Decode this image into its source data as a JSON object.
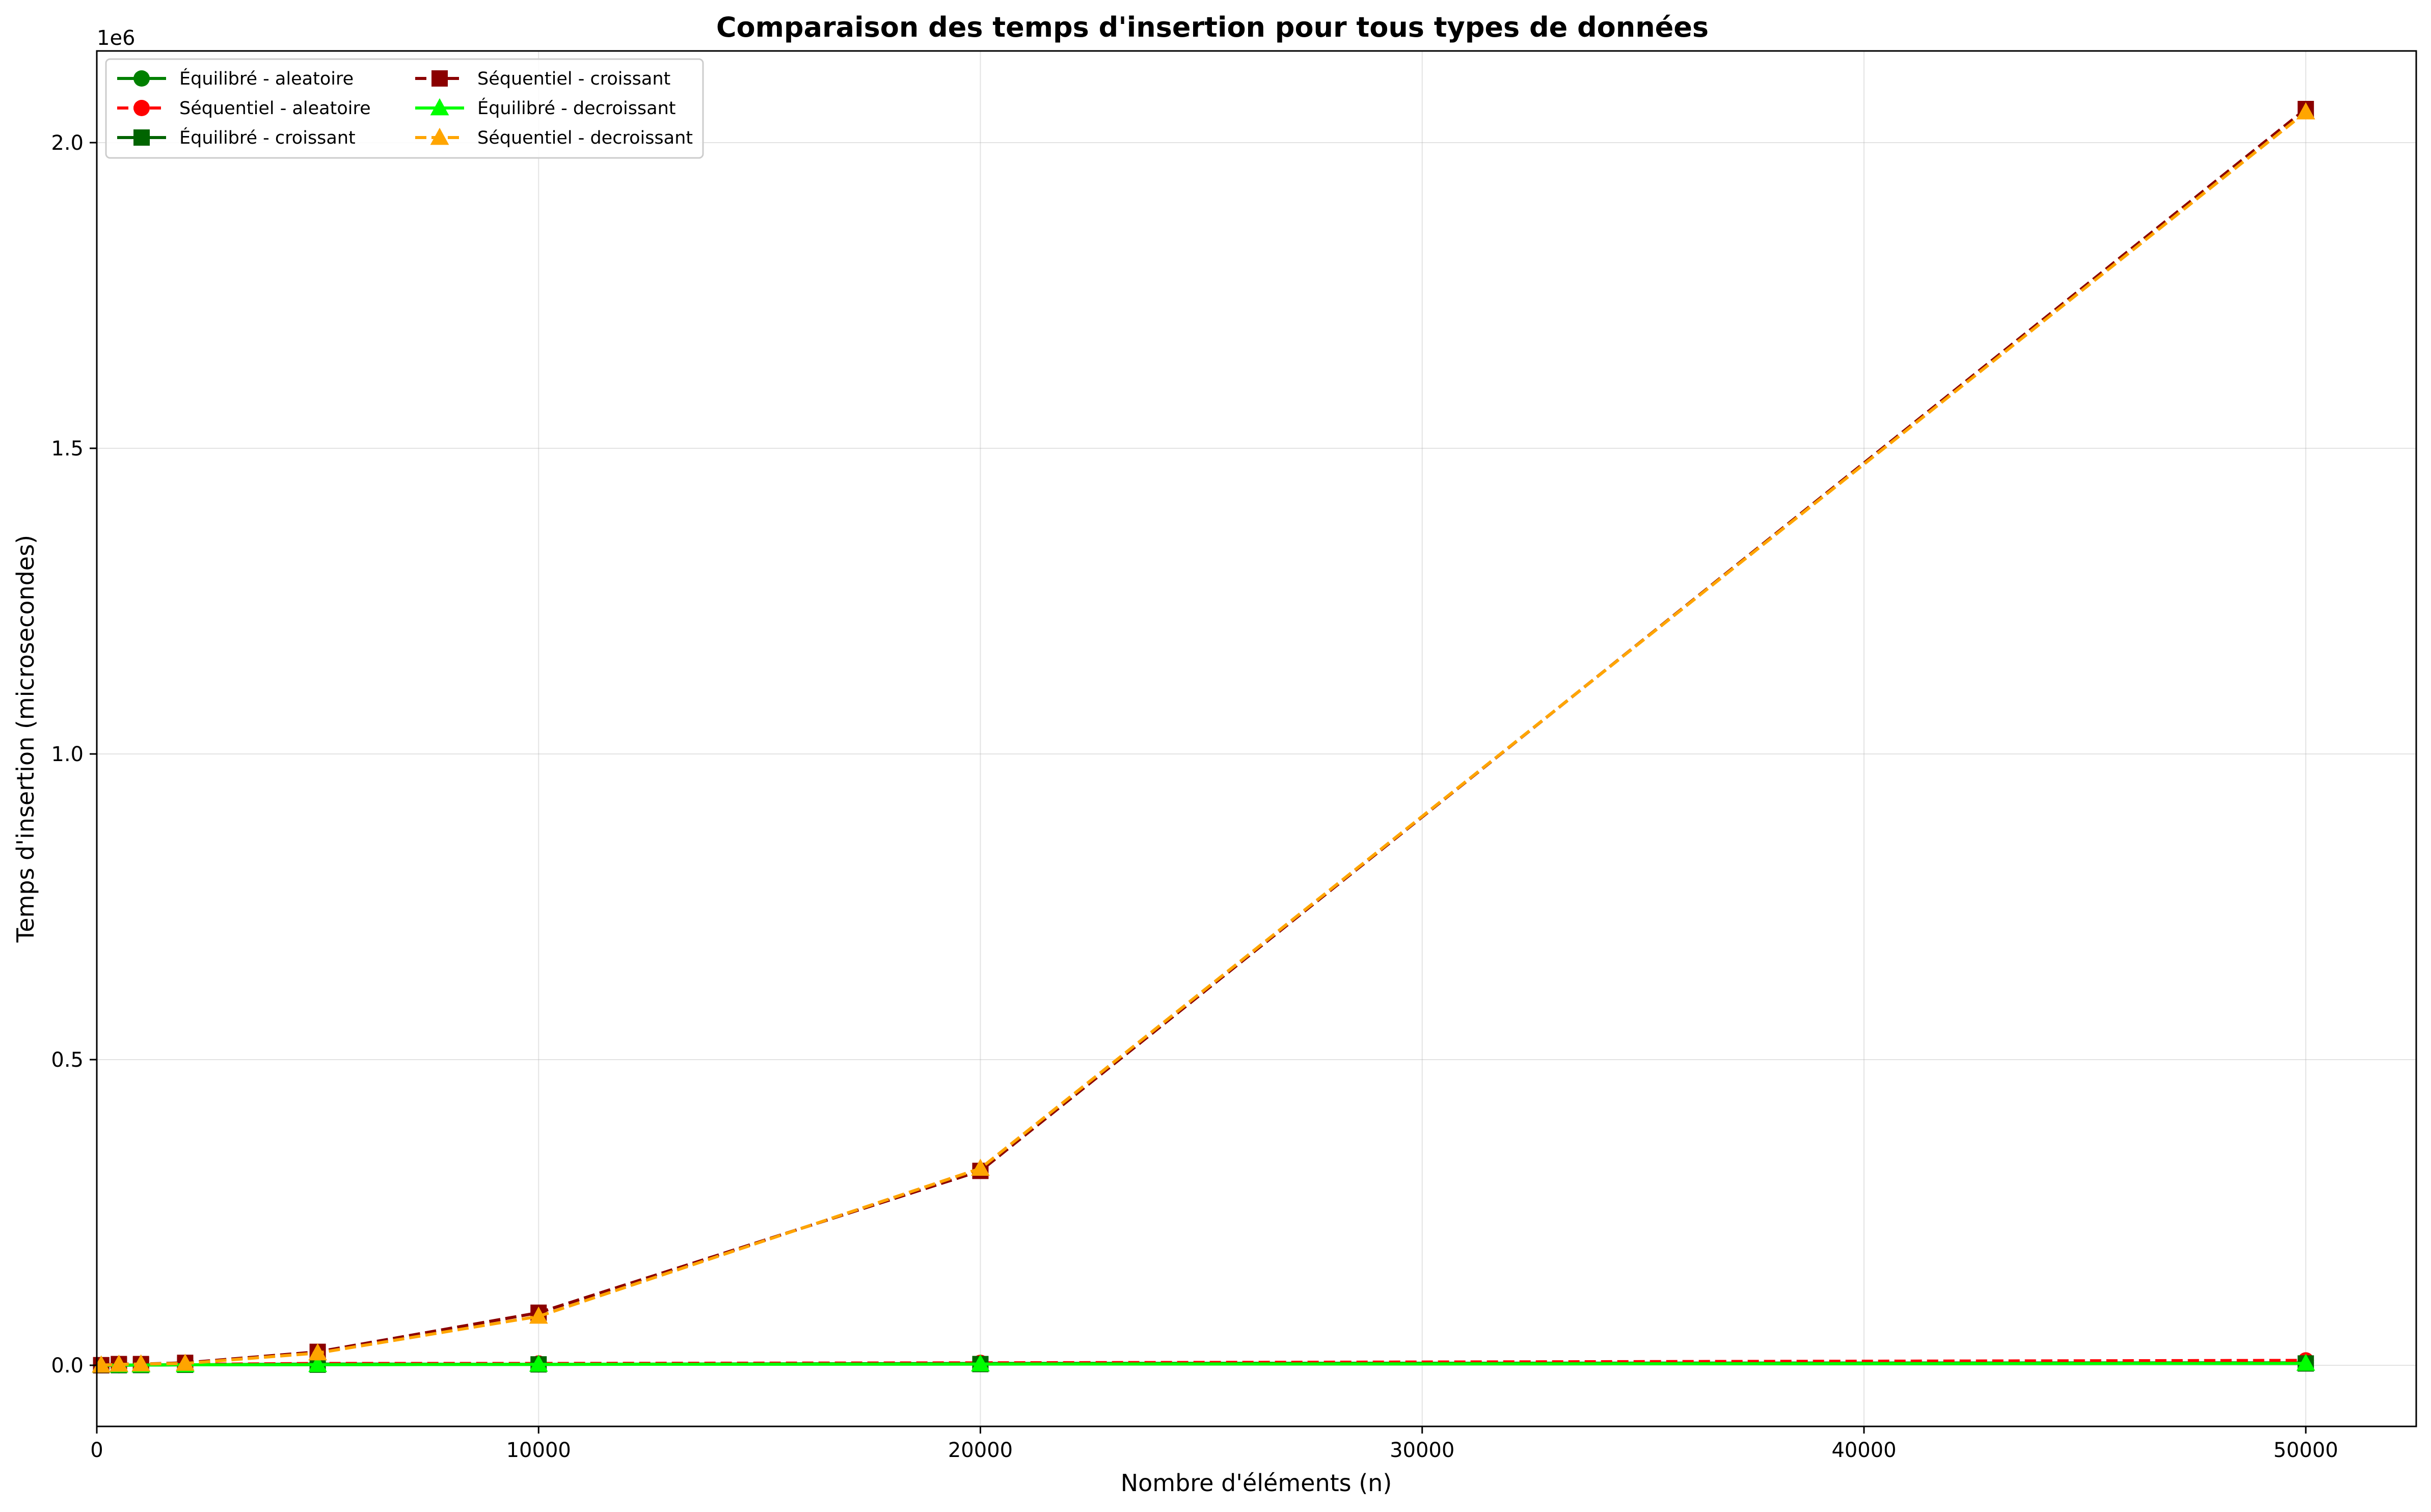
{
  "chart_data": {
    "type": "line",
    "title": "Comparaison des temps d'insertion pour tous types de données",
    "xlabel": "Nombre d'éléments (n)",
    "ylabel": "Temps d'insertion (microsecondes)",
    "y_offset_label": "1e6",
    "xlim": [
      0,
      52500
    ],
    "ylim": [
      -0.1,
      2.15
    ],
    "y_scale_factor": 1000000,
    "grid": true,
    "legend_position": "top-left",
    "x_ticks": [
      0,
      10000,
      20000,
      30000,
      40000,
      50000
    ],
    "x_tick_labels": [
      "0",
      "10000",
      "20000",
      "30000",
      "40000",
      "50000"
    ],
    "y_ticks": [
      0.0,
      0.5,
      1.0,
      1.5,
      2.0
    ],
    "y_tick_labels": [
      "0.0",
      "0.5",
      "1.0",
      "1.5",
      "2.0"
    ],
    "x": [
      100,
      500,
      1000,
      2000,
      5000,
      10000,
      20000,
      50000
    ],
    "series": [
      {
        "name": "Équilibré - aleatoire",
        "color": "#008000",
        "marker": "circle",
        "dash": "solid",
        "values": [
          3e-05,
          0.0002,
          0.0004,
          0.0008,
          0.002,
          0.0015,
          0.003,
          0.004
        ]
      },
      {
        "name": "Séquentiel - aleatoire",
        "color": "#ff0000",
        "marker": "circle",
        "dash": "dashed",
        "values": [
          5e-05,
          0.0003,
          0.0006,
          0.0015,
          0.003,
          0.003,
          0.004,
          0.008
        ]
      },
      {
        "name": "Équilibré - croissant",
        "color": "#006400",
        "marker": "square",
        "dash": "solid",
        "values": [
          3e-05,
          0.0002,
          0.0004,
          0.0008,
          0.001,
          0.0015,
          0.002,
          0.003
        ]
      },
      {
        "name": "Séquentiel - croissant",
        "color": "#8b0000",
        "marker": "square",
        "dash": "dashed",
        "values": [
          0.0002,
          0.002,
          0.002,
          0.004,
          0.022,
          0.086,
          0.318,
          2.055
        ]
      },
      {
        "name": "Équilibré - decroissant",
        "color": "#00ff00",
        "marker": "triangle",
        "dash": "solid",
        "values": [
          3e-05,
          0.0002,
          0.0004,
          0.0008,
          0.001,
          0.0015,
          0.002,
          0.003
        ]
      },
      {
        "name": "Séquentiel - decroissant",
        "color": "#ffa500",
        "marker": "triangle",
        "dash": "dashed",
        "values": [
          0.0002,
          0.0015,
          0.002,
          0.003,
          0.02,
          0.08,
          0.322,
          2.05
        ]
      }
    ]
  }
}
